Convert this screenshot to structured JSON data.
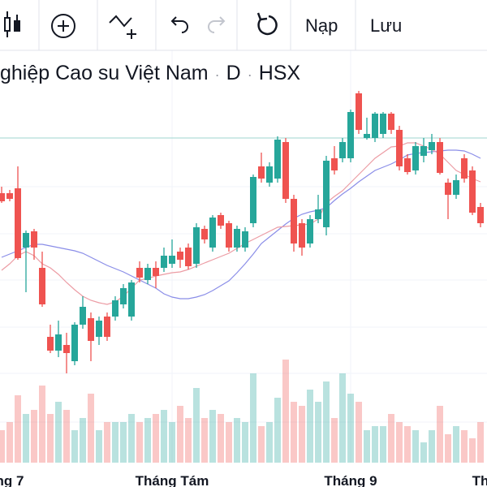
{
  "toolbar": {
    "buttons": [
      "Nạp",
      "Lưu"
    ]
  },
  "chart_data": {
    "type": "candlestick",
    "title": "ghiệp Cao su Việt Nam",
    "interval": "D",
    "exchange": "HSX",
    "categories": [
      null,
      "ng 7",
      null,
      null,
      null,
      null,
      null,
      null,
      null,
      null,
      null,
      null,
      null,
      null,
      null,
      null,
      null,
      null,
      null,
      null,
      null,
      "Tháng Tám",
      null,
      null,
      null,
      null,
      null,
      null,
      null,
      null,
      null,
      null,
      null,
      null,
      null,
      null,
      null,
      null,
      null,
      null,
      null,
      null,
      null,
      "Tháng 9",
      null,
      null,
      null,
      null,
      null,
      null,
      null,
      null,
      null,
      null,
      null,
      null,
      null,
      null,
      null,
      "Th"
    ],
    "open": [
      362,
      362,
      368,
      295,
      315,
      270,
      185,
      168,
      175,
      155,
      200,
      208,
      185,
      210,
      210,
      225,
      210,
      270,
      255,
      270,
      270,
      275,
      290,
      295,
      275,
      318,
      295,
      335,
      325,
      295,
      295,
      325,
      395,
      375,
      380,
      425,
      355,
      325,
      300,
      330,
      320,
      405,
      405,
      405,
      485,
      430,
      430,
      435,
      460,
      440,
      405,
      390,
      408,
      415,
      425,
      375,
      360,
      405,
      390,
      345
    ],
    "high": [
      370,
      366,
      395,
      316,
      318,
      290,
      200,
      205,
      190,
      203,
      235,
      215,
      210,
      215,
      235,
      250,
      255,
      278,
      275,
      278,
      295,
      305,
      295,
      300,
      325,
      322,
      335,
      338,
      328,
      322,
      320,
      385,
      412,
      400,
      432,
      430,
      360,
      330,
      335,
      360,
      408,
      420,
      430,
      465,
      488,
      455,
      462,
      462,
      462,
      445,
      410,
      425,
      430,
      435,
      430,
      380,
      385,
      410,
      395,
      350
    ],
    "low": [
      350,
      352,
      280,
      240,
      280,
      222,
      165,
      160,
      140,
      150,
      195,
      155,
      175,
      180,
      205,
      220,
      205,
      252,
      250,
      245,
      265,
      270,
      270,
      268,
      270,
      300,
      290,
      318,
      290,
      290,
      290,
      320,
      375,
      370,
      375,
      350,
      290,
      285,
      295,
      325,
      310,
      385,
      400,
      400,
      435,
      428,
      425,
      430,
      435,
      390,
      385,
      385,
      400,
      410,
      385,
      330,
      355,
      375,
      335,
      320
    ],
    "close": [
      352,
      355,
      282,
      313,
      295,
      225,
      168,
      188,
      165,
      200,
      222,
      180,
      205,
      185,
      230,
      245,
      252,
      258,
      270,
      260,
      285,
      285,
      280,
      272,
      320,
      305,
      332,
      322,
      295,
      318,
      315,
      382,
      380,
      395,
      428,
      355,
      300,
      295,
      330,
      342,
      402,
      390,
      425,
      462,
      440,
      435,
      460,
      460,
      440,
      395,
      388,
      420,
      420,
      425,
      387,
      360,
      378,
      380,
      338,
      325
    ],
    "up_color": "#26a69a",
    "down_color": "#ef5350",
    "ylim": [
      130,
      500
    ],
    "volume": [
      40,
      50,
      83,
      60,
      65,
      95,
      60,
      75,
      65,
      40,
      55,
      85,
      40,
      50,
      50,
      50,
      60,
      50,
      55,
      60,
      65,
      50,
      70,
      55,
      92,
      55,
      65,
      60,
      50,
      55,
      50,
      110,
      45,
      50,
      80,
      127,
      75,
      70,
      90,
      75,
      100,
      55,
      110,
      85,
      75,
      40,
      45,
      45,
      60,
      50,
      45,
      40,
      25,
      40,
      70,
      35,
      45,
      40,
      30,
      50
    ],
    "volume_ylim": [
      0,
      150
    ],
    "series": [
      {
        "color": "#8a8de8",
        "values": [
          283,
          287,
          291,
          295,
          299,
          299,
          297,
          295,
          293,
          291,
          288,
          283,
          278,
          273,
          269,
          265,
          260,
          255,
          250,
          245,
          238,
          234,
          232,
          232,
          234,
          237,
          242,
          248,
          254,
          264,
          275,
          287,
          300,
          308,
          316,
          324,
          331,
          336,
          339,
          341,
          344,
          353,
          361,
          368,
          376,
          383,
          390,
          394,
          398,
          403,
          409,
          411,
          412,
          413,
          414,
          415,
          415,
          414,
          410,
          405
        ]
      },
      {
        "color": "#ec9ca4",
        "values": [
          267,
          275,
          285,
          290,
          285,
          275,
          270,
          262,
          252,
          243,
          235,
          230,
          227,
          225,
          228,
          235,
          245,
          255,
          257,
          260,
          262,
          264,
          265,
          268,
          272,
          276,
          280,
          284,
          288,
          294,
          300,
          305,
          310,
          315,
          320,
          321,
          322,
          323,
          324,
          330,
          350,
          358,
          365,
          375,
          385,
          395,
          405,
          412,
          419,
          420,
          424,
          424,
          420,
          416,
          410,
          400,
          390,
          385,
          380,
          376
        ]
      }
    ],
    "price_line": 430,
    "price_line_color": "#9fd6cf"
  }
}
